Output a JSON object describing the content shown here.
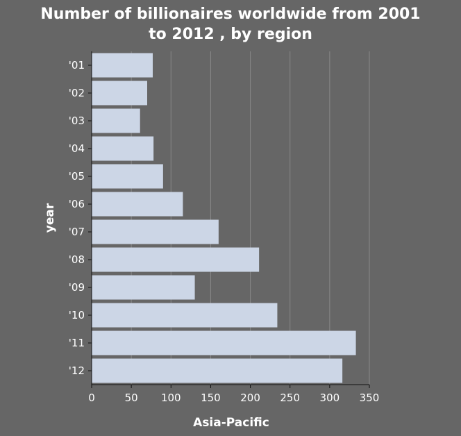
{
  "chart_data": {
    "type": "bar",
    "orientation": "horizontal",
    "title_line1": "Number of billionaires worldwide from 2001",
    "title_line2": "to 2012 , by region",
    "xlabel": "Asia-Pacific",
    "ylabel": "year",
    "categories": [
      "'01",
      "'02",
      "'03",
      "'04",
      "'05",
      "'06",
      "'07",
      "'08",
      "'09",
      "'10",
      "'11",
      "'12"
    ],
    "values": [
      77,
      70,
      61,
      78,
      90,
      115,
      160,
      211,
      130,
      234,
      333,
      316
    ],
    "xlim": [
      0,
      350
    ],
    "xticks": [
      0,
      50,
      100,
      150,
      200,
      250,
      300,
      350
    ],
    "grid": "vertical",
    "legend": "none",
    "colors": {
      "background": "#666666",
      "bar": "#ccd6e6",
      "grid": "#888888",
      "text": "#ffffff"
    }
  }
}
